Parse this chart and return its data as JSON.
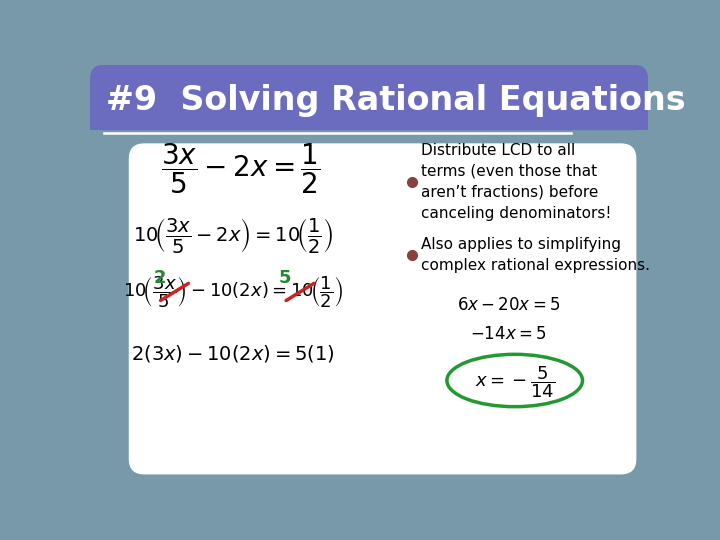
{
  "title": "#9  Solving Rational Equations",
  "title_bg_color": "#6B6BBF",
  "title_text_color": "#ffffff",
  "slide_bg_color": "#ffffff",
  "outer_bg_color": "#7799AA",
  "border_color": "#6699AA",
  "bullet_color": "#8B4040",
  "bullet1_line1": "Distribute LCD to all",
  "bullet1_line2": "terms (even those that",
  "bullet1_line3": "aren’t fractions) before",
  "bullet1_line4": "canceling denominators!",
  "bullet2_line1": "Also applies to simplifying",
  "bullet2_line2": "complex rational expressions.",
  "green_color": "#228833",
  "red_color": "#CC2222",
  "circle_color": "#229933"
}
